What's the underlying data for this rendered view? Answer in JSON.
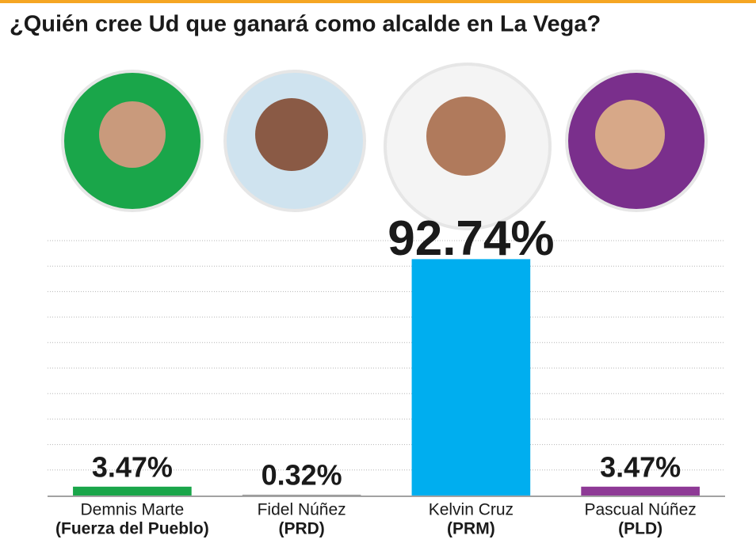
{
  "chart_data": {
    "type": "bar",
    "title": "¿Quién cree Ud que ganará como alcalde en La Vega?",
    "categories": [
      "Demnis Marte",
      "Fidel Núñez",
      "Kelvin Cruz",
      "Pascual Núñez"
    ],
    "parties": [
      "(Fuerza del Pueblo)",
      "(PRD)",
      "(PRM)",
      "(PLD)"
    ],
    "values": [
      3.47,
      0.32,
      92.74,
      3.47
    ],
    "value_labels": [
      "3.47%",
      "0.32%",
      "92.74%",
      "3.47%"
    ],
    "colors": [
      "#1aa64a",
      "#9a9a9a",
      "#00aeef",
      "#8e3a96"
    ],
    "ylim": [
      0,
      100
    ],
    "yticks": [
      10,
      20,
      30,
      40,
      50,
      60,
      70,
      80,
      90,
      100
    ],
    "grid": true
  }
}
